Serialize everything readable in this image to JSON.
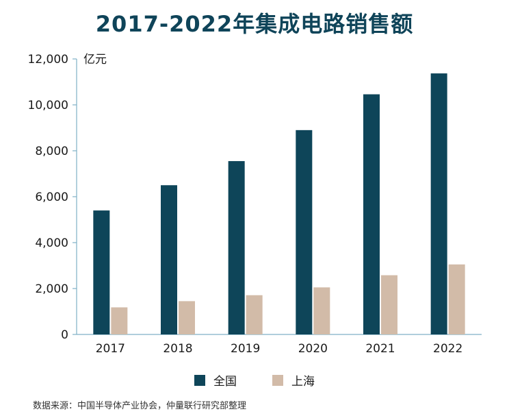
{
  "title": "2017-2022年集成电路销售额",
  "source": "数据来源：中国半导体产业协会，仲量联行研究部整理",
  "colors": {
    "national": "#0e4559",
    "shanghai": "#d2bba8",
    "axis": "#7fb0c6",
    "title": "#0f4459"
  },
  "chart_data": {
    "type": "bar",
    "title": "2017-2022年集成电路销售额",
    "xlabel": "",
    "ylabel": "亿元",
    "categories": [
      "2017",
      "2018",
      "2019",
      "2020",
      "2021",
      "2022"
    ],
    "series": [
      {
        "name": "全国",
        "values": [
          5400,
          6500,
          7550,
          8900,
          10460,
          11370
        ]
      },
      {
        "name": "上海",
        "values": [
          1180,
          1450,
          1710,
          2050,
          2580,
          3050
        ]
      }
    ],
    "ylim": [
      0,
      12000
    ],
    "yticks": [
      0,
      2000,
      4000,
      6000,
      8000,
      10000,
      12000
    ],
    "ytick_labels": [
      "0",
      "2,000",
      "4,000",
      "6,000",
      "8,000",
      "10,000",
      "12,000"
    ],
    "grid": false,
    "legend": "bottom-center"
  }
}
